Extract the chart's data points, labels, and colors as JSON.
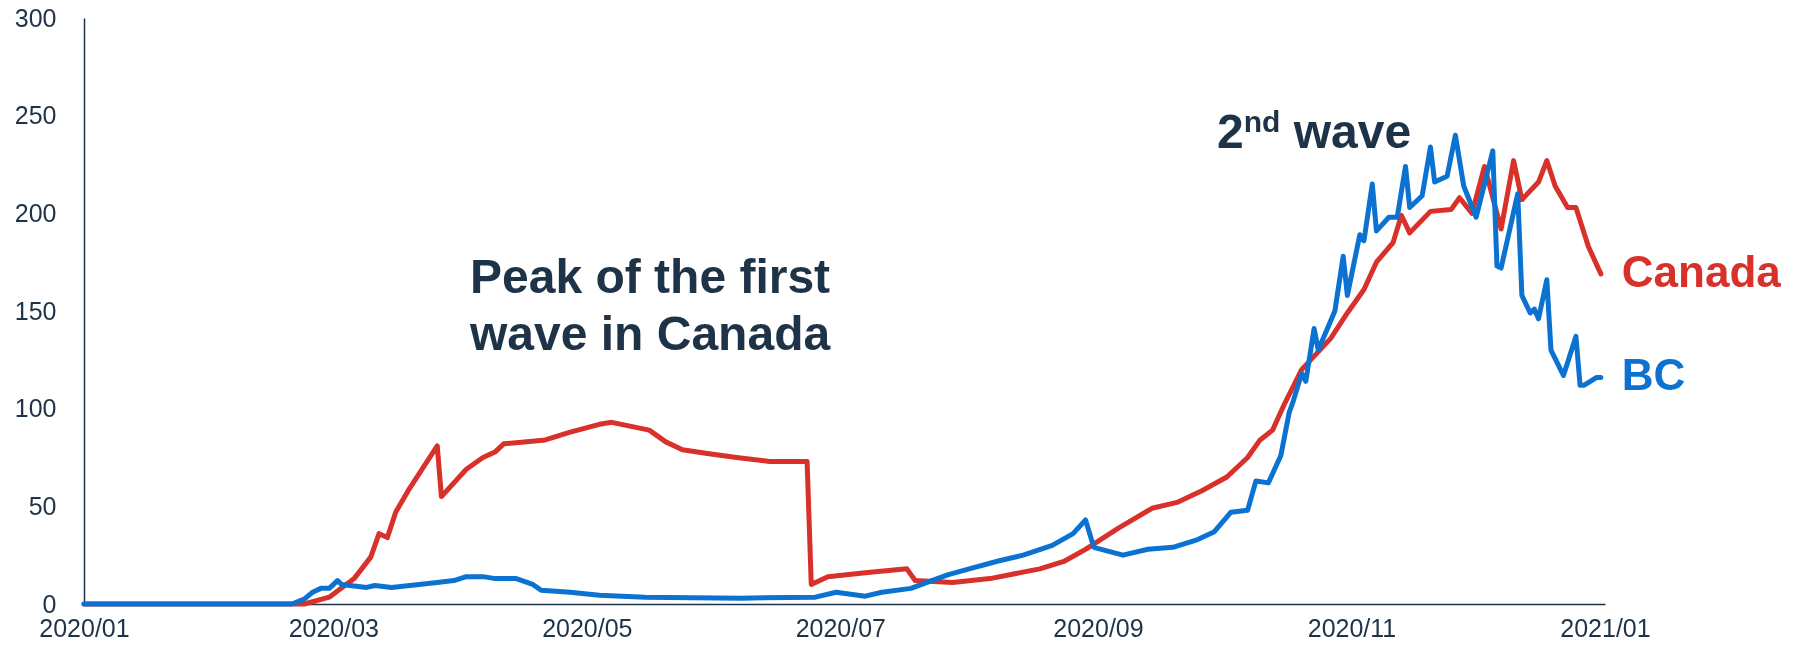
{
  "chart_data": {
    "type": "line",
    "annotations": [
      "Peak of the first wave in Canada",
      "2$^{nd}$ wave"
    ],
    "xlim": [
      "2020-01-01",
      "2021-01-01"
    ],
    "xticks": [
      {
        "value": "2020-01-01",
        "label": "2020/01"
      },
      {
        "value": "2020-03-01",
        "label": "2020/03"
      },
      {
        "value": "2020-05-01",
        "label": "2020/05"
      },
      {
        "value": "2020-07-01",
        "label": "2020/07"
      },
      {
        "value": "2020-09-01",
        "label": "2020/09"
      },
      {
        "value": "2020-11-01",
        "label": "2020/11"
      },
      {
        "value": "2021-01-01",
        "label": "2021/01"
      }
    ],
    "ylim": [
      0,
      300
    ],
    "yticks": [
      0,
      50,
      100,
      150,
      200,
      250,
      300
    ],
    "series": [
      {
        "name": "Canada",
        "color": "#d8302a",
        "x": [
          "2020-01-01",
          "2020-02-23",
          "2020-02-29",
          "2020-03-06",
          "2020-03-10",
          "2020-03-12",
          "2020-03-14",
          "2020-03-16",
          "2020-03-19",
          "2020-03-26",
          "2020-03-27",
          "2020-04-02",
          "2020-04-06",
          "2020-04-09",
          "2020-04-11",
          "2020-04-21",
          "2020-04-27",
          "2020-05-04",
          "2020-05-07",
          "2020-05-16",
          "2020-05-20",
          "2020-05-24",
          "2020-05-30",
          "2020-06-06",
          "2020-06-14",
          "2020-06-23",
          "2020-06-24",
          "2020-06-28",
          "2020-07-07",
          "2020-07-17",
          "2020-07-19",
          "2020-07-28",
          "2020-08-06",
          "2020-08-18",
          "2020-08-24",
          "2020-08-29",
          "2020-09-06",
          "2020-09-14",
          "2020-09-20",
          "2020-09-26",
          "2020-10-02",
          "2020-10-07",
          "2020-10-10",
          "2020-10-13",
          "2020-10-16",
          "2020-10-20",
          "2020-10-27",
          "2020-10-31",
          "2020-11-04",
          "2020-11-07",
          "2020-11-11",
          "2020-11-13",
          "2020-11-15",
          "2020-11-20",
          "2020-11-25",
          "2020-11-27",
          "2020-11-30",
          "2020-12-03",
          "2020-12-07",
          "2020-12-10",
          "2020-12-12",
          "2020-12-16",
          "2020-12-18",
          "2020-12-20",
          "2020-12-23",
          "2020-12-25",
          "2020-12-28",
          "2020-12-31"
        ],
        "values": [
          0,
          0,
          3.5,
          13,
          24,
          36,
          34,
          47,
          58,
          81,
          55,
          69,
          75,
          78,
          82,
          84,
          88,
          92,
          93,
          89,
          83,
          79,
          77,
          75,
          73,
          73,
          10,
          14,
          16,
          18,
          12,
          11,
          13,
          18,
          22,
          28,
          39,
          49,
          52,
          58,
          65,
          75,
          84,
          89,
          103,
          120,
          136,
          149,
          161,
          175,
          185,
          199,
          190,
          201,
          202,
          208,
          200,
          224,
          192,
          227,
          207,
          216,
          227,
          214,
          203,
          203,
          183,
          169
        ]
      },
      {
        "name": "BC",
        "color": "#0b72d2",
        "x": [
          "2020-01-01",
          "2020-02-20",
          "2020-02-23",
          "2020-02-25",
          "2020-02-27",
          "2020-02-29",
          "2020-03-02",
          "2020-03-03",
          "2020-03-09",
          "2020-03-11",
          "2020-03-15",
          "2020-03-26",
          "2020-03-30",
          "2020-04-02",
          "2020-04-06",
          "2020-04-09",
          "2020-04-14",
          "2020-04-18",
          "2020-04-20",
          "2020-04-27",
          "2020-05-04",
          "2020-05-15",
          "2020-06-07",
          "2020-06-25",
          "2020-06-30",
          "2020-07-07",
          "2020-07-11",
          "2020-07-18",
          "2020-07-23",
          "2020-07-27",
          "2020-08-01",
          "2020-08-08",
          "2020-08-14",
          "2020-08-21",
          "2020-08-26",
          "2020-08-29",
          "2020-08-31",
          "2020-09-07",
          "2020-09-13",
          "2020-09-19",
          "2020-09-25",
          "2020-09-29",
          "2020-10-03",
          "2020-10-07",
          "2020-10-09",
          "2020-10-12",
          "2020-10-15",
          "2020-10-17",
          "2020-10-18",
          "2020-10-20",
          "2020-10-21",
          "2020-10-23",
          "2020-10-24",
          "2020-10-28",
          "2020-10-30",
          "2020-10-31",
          "2020-11-03",
          "2020-11-04",
          "2020-11-06",
          "2020-11-07",
          "2020-11-10",
          "2020-11-12",
          "2020-11-14",
          "2020-11-15",
          "2020-11-18",
          "2020-11-20",
          "2020-11-21",
          "2020-11-24",
          "2020-11-26",
          "2020-11-28",
          "2020-12-01",
          "2020-12-05",
          "2020-12-06",
          "2020-12-07",
          "2020-12-11",
          "2020-12-12",
          "2020-12-14",
          "2020-12-15",
          "2020-12-16",
          "2020-12-18",
          "2020-12-19",
          "2020-12-22",
          "2020-12-25",
          "2020-12-26",
          "2020-12-27",
          "2020-12-30",
          "2020-12-31"
        ],
        "values": [
          0,
          0,
          2.5,
          6,
          8,
          8,
          12,
          10,
          8.5,
          9.5,
          8.5,
          11,
          12,
          14,
          14,
          13,
          13,
          10,
          7,
          6,
          4.5,
          3.5,
          3,
          3.5,
          6,
          4,
          6,
          8,
          12,
          15,
          18,
          22,
          25,
          30,
          36,
          43,
          29,
          25,
          28,
          29,
          33,
          37,
          47,
          48,
          63,
          62,
          76,
          98,
          104,
          118,
          114,
          141,
          130,
          150,
          178,
          158,
          189,
          186,
          215,
          191,
          198,
          198,
          224,
          203,
          209,
          234,
          216,
          219,
          240,
          214,
          198,
          232,
          173,
          172,
          210,
          158,
          149,
          151,
          146,
          166,
          130,
          117,
          137,
          112,
          112,
          116,
          116
        ]
      }
    ]
  }
}
